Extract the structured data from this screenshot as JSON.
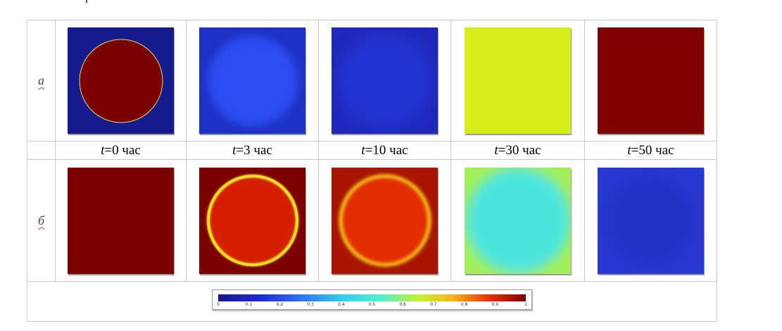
{
  "rows": [
    {
      "label": "а",
      "panels": [
        {
          "bg": "#161a8a",
          "circle": "#7d0000",
          "circle_d": 117,
          "edge": "#d9e35a",
          "blur": 0
        },
        {
          "bg": "#1f31c4",
          "circle": "#2d4df2",
          "circle_d": 128,
          "edge": "none",
          "blur": 6
        },
        {
          "bg": "#1f28bb",
          "circle": "#2334d0",
          "circle_d": 134,
          "edge": "none",
          "blur": 9
        },
        {
          "bg": "#d6ef1c",
          "circle": "#d6ef1c",
          "circle_d": 0,
          "edge": "none",
          "blur": 0
        },
        {
          "bg": "#800000",
          "circle": "#800000",
          "circle_d": 0,
          "edge": "none",
          "blur": 0
        }
      ]
    },
    {
      "label": "б",
      "panels": [
        {
          "bg": "#7d0000",
          "circle": "#7d0000",
          "circle_d": 0,
          "ring": "none",
          "blur": 0
        },
        {
          "bg": "#7d0000",
          "circle": "#d41f00",
          "circle_d": 122,
          "ring": "#f6dd27",
          "blur": 0
        },
        {
          "bg": "#a81500",
          "circle": "#e22e00",
          "circle_d": 122,
          "ring": "#f8cc20",
          "blur": 2
        },
        {
          "bg": "#a4f05c",
          "circle": "#4ce6dd",
          "circle_d": 140,
          "ring": "#5ee2ea",
          "blur": 8
        },
        {
          "bg": "#2839d2",
          "circle": "#2432c6",
          "circle_d": 130,
          "ring": "none",
          "blur": 10
        }
      ]
    }
  ],
  "time_labels": [
    {
      "var": "t",
      "value": "=0 час"
    },
    {
      "var": "t",
      "value": "=3 час"
    },
    {
      "var": "t",
      "value": "=10 час"
    },
    {
      "var": "t",
      "value": "=30 час"
    },
    {
      "var": "t",
      "value": "=50 час"
    }
  ],
  "colorbar": {
    "ticks": [
      "0",
      "0.1",
      "0.2",
      "0.3",
      "0.4",
      "0.5",
      "0.6",
      "0.7",
      "0.8",
      "0.9",
      "1"
    ]
  }
}
